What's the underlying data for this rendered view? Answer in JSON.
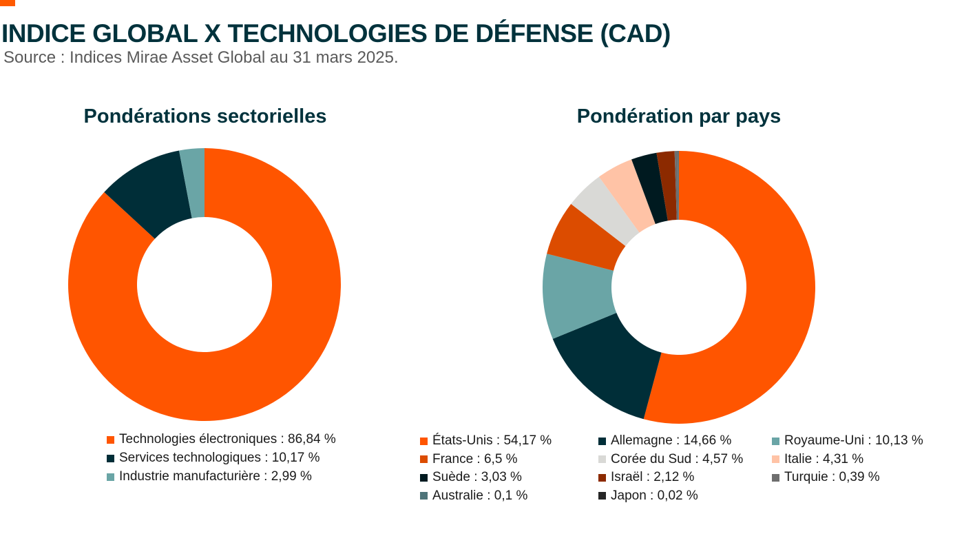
{
  "header": {
    "title": "INDICE GLOBAL X TECHNOLOGIES DE DÉFENSE (CAD)",
    "source": "Source : Indices Mirae Asset Global au 31 mars 2025."
  },
  "colors": {
    "accent": "#ff5a00",
    "title": "#00323c"
  },
  "chart_data": [
    {
      "type": "pie",
      "donut": true,
      "title": "Pondérations sectorielles",
      "categories": [
        "Technologies électroniques",
        "Services technologiques",
        "Industrie manufacturière"
      ],
      "values": [
        86.84,
        10.17,
        2.99
      ],
      "colors": [
        "#ff5500",
        "#002e38",
        "#6aa5a6"
      ],
      "legend_labels": [
        "Technologies électroniques : 86,84 %",
        "Services technologiques : 10,17 %",
        "Industrie manufacturière : 2,99 %"
      ],
      "legend_position": "bottom"
    },
    {
      "type": "pie",
      "donut": true,
      "title": "Pondération par pays",
      "categories": [
        "États-Unis",
        "Allemagne",
        "Royaume-Uni",
        "France",
        "Corée du Sud",
        "Italie",
        "Suède",
        "Israël",
        "Turquie",
        "Australie",
        "Japon"
      ],
      "values": [
        54.17,
        14.66,
        10.13,
        6.5,
        4.57,
        4.31,
        3.03,
        2.12,
        0.39,
        0.1,
        0.02
      ],
      "colors": [
        "#ff5500",
        "#002e38",
        "#6aa5a6",
        "#dc4c00",
        "#d9d9d6",
        "#ffc3a6",
        "#001a20",
        "#8c2a00",
        "#6e6e6e",
        "#4e7479",
        "#262626"
      ],
      "legend_labels": [
        "États-Unis : 54,17 %",
        "Allemagne : 14,66 %",
        "Royaume-Uni : 10,13 %",
        "France : 6,5 %",
        "Corée du Sud : 4,57 %",
        "Italie : 4,31 %",
        "Suède : 3,03 %",
        "Israël : 2,12 %",
        "Turquie : 0,39 %",
        "Australie : 0,1 %",
        "Japon : 0,02 %"
      ],
      "legend_position": "bottom"
    }
  ]
}
